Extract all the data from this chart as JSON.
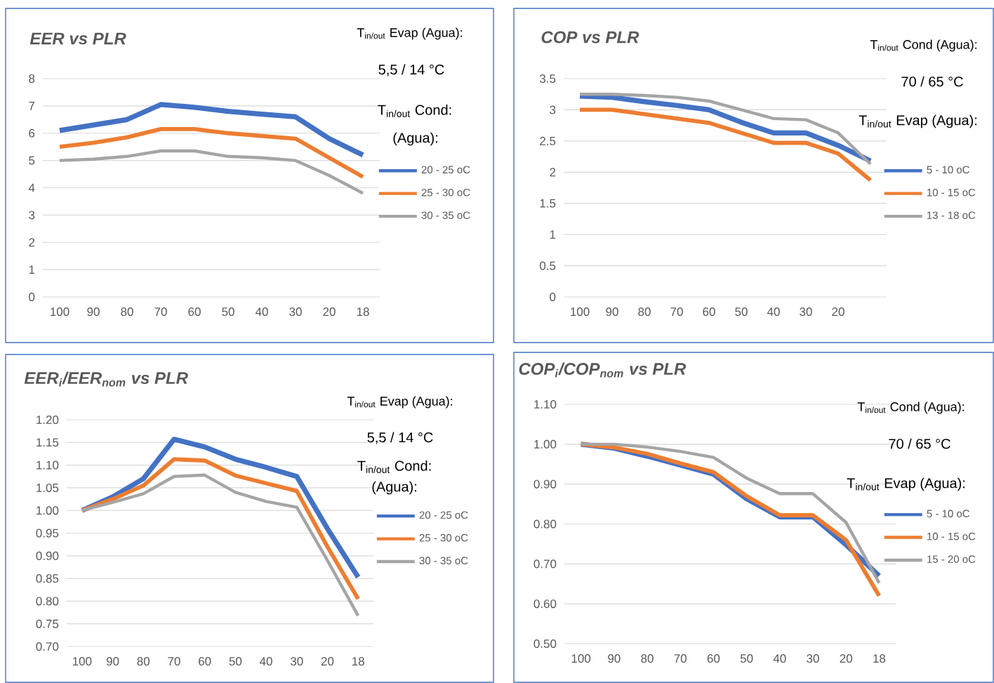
{
  "chart_data": [
    {
      "type": "line",
      "title": "EER vs PLR",
      "categories": [
        "100",
        "90",
        "80",
        "70",
        "60",
        "50",
        "40",
        "30",
        "20",
        "18"
      ],
      "ylim": [
        0,
        8
      ],
      "yticks": [
        0,
        1,
        2,
        3,
        4,
        5,
        6,
        7,
        8
      ],
      "grid": "y",
      "legend": "right",
      "marker": "none",
      "line_style": "solid",
      "annotations": [
        "T$_{in/out}$ Evap (Agua):",
        "5,5 / 14 °C",
        "T$_{in/out}$ Cond:",
        "(Agua):"
      ],
      "series": [
        {
          "name": "20 - 25 oC",
          "color": "#4472c4",
          "values": [
            6.1,
            6.3,
            6.5,
            7.05,
            6.95,
            6.8,
            6.7,
            6.6,
            5.8,
            5.2
          ]
        },
        {
          "name": "25 - 30 oC",
          "color": "#ed7d31",
          "values": [
            5.5,
            5.65,
            5.85,
            6.15,
            6.15,
            6.0,
            5.9,
            5.8,
            5.1,
            4.4
          ]
        },
        {
          "name": "30 - 35 oC",
          "color": "#a5a5a5",
          "values": [
            5.0,
            5.05,
            5.15,
            5.35,
            5.35,
            5.15,
            5.1,
            5.0,
            4.45,
            3.8
          ]
        }
      ]
    },
    {
      "type": "line",
      "title": "COP vs PLR",
      "categories": [
        "100",
        "90",
        "80",
        "70",
        "60",
        "50",
        "40",
        "30",
        "20",
        null
      ],
      "ylim": [
        0,
        3.5
      ],
      "yticks": [
        0,
        0.5,
        1,
        1.5,
        2,
        2.5,
        3,
        3.5
      ],
      "grid": "y",
      "legend": "right",
      "marker": "none",
      "line_style": "solid",
      "annotations": [
        "T$_{in/out}$ Cond (Agua):",
        "70 / 65 °C",
        "T$_{in/out}$ Evap (Agua):"
      ],
      "series": [
        {
          "name": "5 - 10 oC",
          "color": "#4472c4",
          "values": [
            3.22,
            3.2,
            3.13,
            3.07,
            3.0,
            2.8,
            2.63,
            2.63,
            2.43,
            2.18
          ]
        },
        {
          "name": "10 - 15 oC",
          "color": "#ed7d31",
          "values": [
            3.0,
            3.0,
            2.93,
            2.86,
            2.79,
            2.63,
            2.47,
            2.47,
            2.3,
            1.87
          ]
        },
        {
          "name": "13 - 18 oC",
          "color": "#a5a5a5",
          "values": [
            3.25,
            3.25,
            3.23,
            3.2,
            3.14,
            3.0,
            2.86,
            2.84,
            2.63,
            2.13
          ]
        }
      ]
    },
    {
      "type": "line",
      "title": "EER$_{i}$/EER$_{nom}$ vs PLR",
      "categories": [
        "100",
        "90",
        "80",
        "70",
        "60",
        "50",
        "40",
        "30",
        "20",
        "18"
      ],
      "ylim": [
        0.7,
        1.2
      ],
      "yticks": [
        {
          "value": 0.7,
          "label": "0.70"
        },
        {
          "value": 0.75,
          "label": "0.75"
        },
        {
          "value": 0.8,
          "label": "0.80"
        },
        {
          "value": 0.85,
          "label": "0.85"
        },
        {
          "value": 0.9,
          "label": "0.90"
        },
        {
          "value": 0.95,
          "label": "0.95"
        },
        {
          "value": 1.0,
          "label": "1.00"
        },
        {
          "value": 1.05,
          "label": "1.05"
        },
        {
          "value": 1.1,
          "label": "1.10"
        },
        {
          "value": 1.15,
          "label": "1.15"
        },
        {
          "value": 1.2,
          "label": "1.20"
        }
      ],
      "grid": "y",
      "legend": "right",
      "marker": "none",
      "line_style": "solid",
      "annotations": [
        "T$_{in/out}$ Evap (Agua):",
        "5,5 / 14 °C",
        "T$_{in/out}$ Cond:",
        "(Agua):"
      ],
      "series": [
        {
          "name": "20 - 25 oC",
          "color": "#4472c4",
          "values": [
            1.0,
            1.03,
            1.07,
            1.157,
            1.14,
            1.113,
            1.095,
            1.075,
            0.96,
            0.853
          ]
        },
        {
          "name": "25 - 30 oC",
          "color": "#ed7d31",
          "values": [
            1.0,
            1.025,
            1.055,
            1.113,
            1.11,
            1.077,
            1.06,
            1.043,
            0.92,
            0.805
          ]
        },
        {
          "name": "30 - 35 oC",
          "color": "#a5a5a5",
          "values": [
            1.0,
            1.018,
            1.037,
            1.075,
            1.078,
            1.04,
            1.02,
            1.007,
            0.89,
            0.768
          ]
        }
      ]
    },
    {
      "type": "line",
      "title": "COP$_{i}$/COP$_{nom}$ vs PLR",
      "categories": [
        "100",
        "90",
        "80",
        "70",
        "60",
        "50",
        "40",
        "30",
        "20",
        "18"
      ],
      "ylim": [
        0.5,
        1.1
      ],
      "yticks": [
        {
          "value": 0.5,
          "label": "0.50"
        },
        {
          "value": 0.6,
          "label": "0.60"
        },
        {
          "value": 0.7,
          "label": "0.70"
        },
        {
          "value": 0.8,
          "label": "0.80"
        },
        {
          "value": 0.9,
          "label": "0.90"
        },
        {
          "value": 1.0,
          "label": "1.00"
        },
        {
          "value": 1.1,
          "label": "1.10"
        }
      ],
      "grid": "y",
      "legend": "right",
      "marker": "none",
      "line_style": "solid",
      "annotations": [
        "T$_{in/out}$ Cond (Agua):",
        "70 / 65 °C",
        "T$_{in/out}$ Evap (Agua):"
      ],
      "series": [
        {
          "name": "5 - 10 oC",
          "color": "#4472c4",
          "values": [
            1.0,
            0.99,
            0.97,
            0.948,
            0.925,
            0.863,
            0.818,
            0.818,
            0.748,
            0.67
          ]
        },
        {
          "name": "10 - 15 oC",
          "color": "#ed7d31",
          "values": [
            1.0,
            0.992,
            0.976,
            0.952,
            0.93,
            0.87,
            0.822,
            0.822,
            0.76,
            0.62
          ]
        },
        {
          "name": "15 - 20 oC",
          "color": "#a5a5a5",
          "values": [
            1.0,
            1.0,
            0.993,
            0.982,
            0.967,
            0.915,
            0.876,
            0.876,
            0.804,
            0.652
          ]
        }
      ]
    }
  ]
}
